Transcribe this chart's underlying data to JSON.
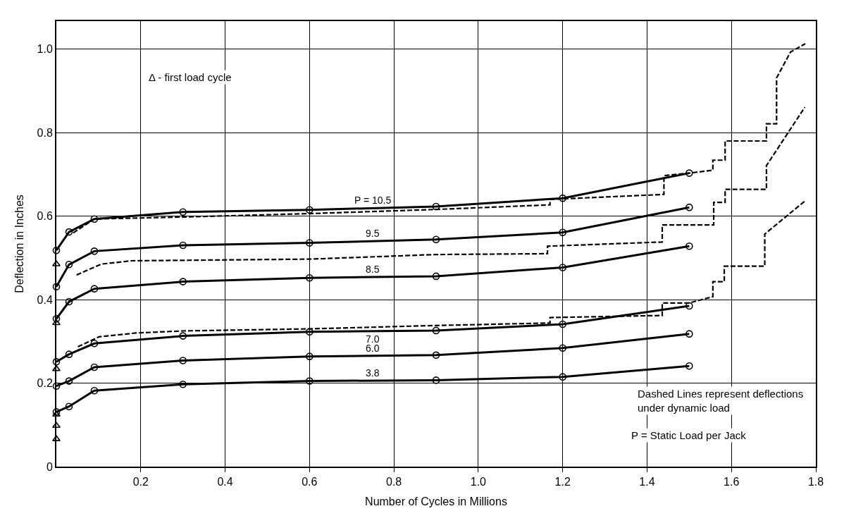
{
  "chart_data": {
    "type": "line",
    "xlabel": "Number of Cycles in Millions",
    "ylabel": "Deflection in Inches",
    "xlim": [
      0,
      1.8
    ],
    "xticks": [
      0.2,
      0.4,
      0.6,
      0.8,
      {
        "value": 1.0,
        "label": "1.0"
      },
      1.2,
      1.4,
      1.6,
      1.8
    ],
    "ylim": [
      0,
      1.067
    ],
    "yticks": [
      0,
      0.2,
      0.4,
      0.6,
      0.8,
      {
        "value": 1.0,
        "label": "1.0"
      }
    ],
    "grid": true,
    "legend": false,
    "annotations": [
      "Δ - first load cycle",
      "Dashed Lines represent deflections under dynamic load",
      "P = Static Load per Jack"
    ],
    "series": [
      {
        "name": "P = 10.5",
        "color": "#000000",
        "marker": "circle",
        "line_style": "solid",
        "x": [
          0,
          0.03,
          0.09,
          0.3,
          0.6,
          0.9,
          1.2,
          1.5
        ],
        "values": [
          0.518,
          0.562,
          0.593,
          0.61,
          0.615,
          0.623,
          0.643,
          0.703
        ]
      },
      {
        "name": "9.5",
        "color": "#000000",
        "marker": "circle",
        "line_style": "solid",
        "x": [
          0,
          0.03,
          0.09,
          0.3,
          0.6,
          0.9,
          1.2,
          1.5
        ],
        "values": [
          0.431,
          0.484,
          0.516,
          0.53,
          0.536,
          0.544,
          0.561,
          0.621
        ]
      },
      {
        "name": "8.5",
        "color": "#000000",
        "marker": "circle",
        "line_style": "solid",
        "x": [
          0,
          0.03,
          0.09,
          0.3,
          0.6,
          0.9,
          1.2,
          1.5
        ],
        "values": [
          0.354,
          0.395,
          0.426,
          0.443,
          0.452,
          0.456,
          0.477,
          0.528
        ]
      },
      {
        "name": "7.0",
        "color": "#000000",
        "marker": "circle",
        "line_style": "solid",
        "x": [
          0,
          0.03,
          0.09,
          0.3,
          0.6,
          0.9,
          1.2,
          1.5
        ],
        "values": [
          0.251,
          0.269,
          0.295,
          0.313,
          0.323,
          0.326,
          0.341,
          0.385
        ]
      },
      {
        "name": "6.0",
        "color": "#000000",
        "marker": "circle",
        "line_style": "solid",
        "x": [
          0,
          0.03,
          0.09,
          0.3,
          0.6,
          0.9,
          1.2,
          1.5
        ],
        "values": [
          0.193,
          0.205,
          0.238,
          0.254,
          0.264,
          0.267,
          0.284,
          0.318
        ]
      },
      {
        "name": "3.8",
        "color": "#000000",
        "marker": "circle",
        "line_style": "solid",
        "x": [
          0,
          0.03,
          0.09,
          0.3,
          0.6,
          0.9,
          1.2,
          1.5
        ],
        "values": [
          0.131,
          0.144,
          0.182,
          0.197,
          0.205,
          0.207,
          0.215,
          0.241
        ]
      },
      {
        "color": "#000000",
        "marker": "none",
        "line_style": "dashed",
        "x": [
          0.04,
          0.09,
          0.3,
          0.6,
          0.9,
          1.17,
          1.17,
          1.44,
          1.44,
          1.5,
          1.556,
          1.556,
          1.585,
          1.585,
          1.683,
          1.683,
          1.707,
          1.707,
          1.74,
          1.775
        ],
        "values": [
          0.56,
          0.593,
          0.598,
          0.606,
          0.616,
          0.627,
          0.64,
          0.652,
          0.697,
          0.703,
          0.71,
          0.734,
          0.734,
          0.78,
          0.78,
          0.821,
          0.821,
          0.931,
          0.993,
          1.013
        ]
      },
      {
        "color": "#000000",
        "marker": "none",
        "line_style": "dashed",
        "x": [
          0.048,
          0.106,
          0.178,
          0.6,
          0.9,
          1.164,
          1.164,
          1.436,
          1.436,
          1.558,
          1.558,
          1.585,
          1.585,
          1.683,
          1.683,
          1.774
        ],
        "values": [
          0.459,
          0.485,
          0.493,
          0.497,
          0.508,
          0.51,
          0.528,
          0.538,
          0.579,
          0.579,
          0.633,
          0.633,
          0.664,
          0.664,
          0.721,
          0.861
        ]
      },
      {
        "color": "#000000",
        "marker": "none",
        "line_style": "dashed",
        "x": [
          0.051,
          0.101,
          0.188,
          0.3,
          0.6,
          0.9,
          1.17,
          1.17,
          1.436,
          1.436,
          1.5,
          1.556,
          1.556,
          1.583,
          1.583,
          1.679,
          1.679,
          1.774
        ],
        "values": [
          0.287,
          0.311,
          0.32,
          0.325,
          0.33,
          0.338,
          0.344,
          0.357,
          0.362,
          0.392,
          0.392,
          0.407,
          0.443,
          0.443,
          0.48,
          0.48,
          0.557,
          0.636
        ]
      },
      {
        "type": "scatter",
        "color": "#000000",
        "marker": "triangle",
        "x": [
          0,
          0,
          0,
          0,
          0,
          0
        ],
        "values": [
          0.485,
          0.344,
          0.234,
          0.125,
          0.098,
          0.066
        ]
      }
    ]
  }
}
